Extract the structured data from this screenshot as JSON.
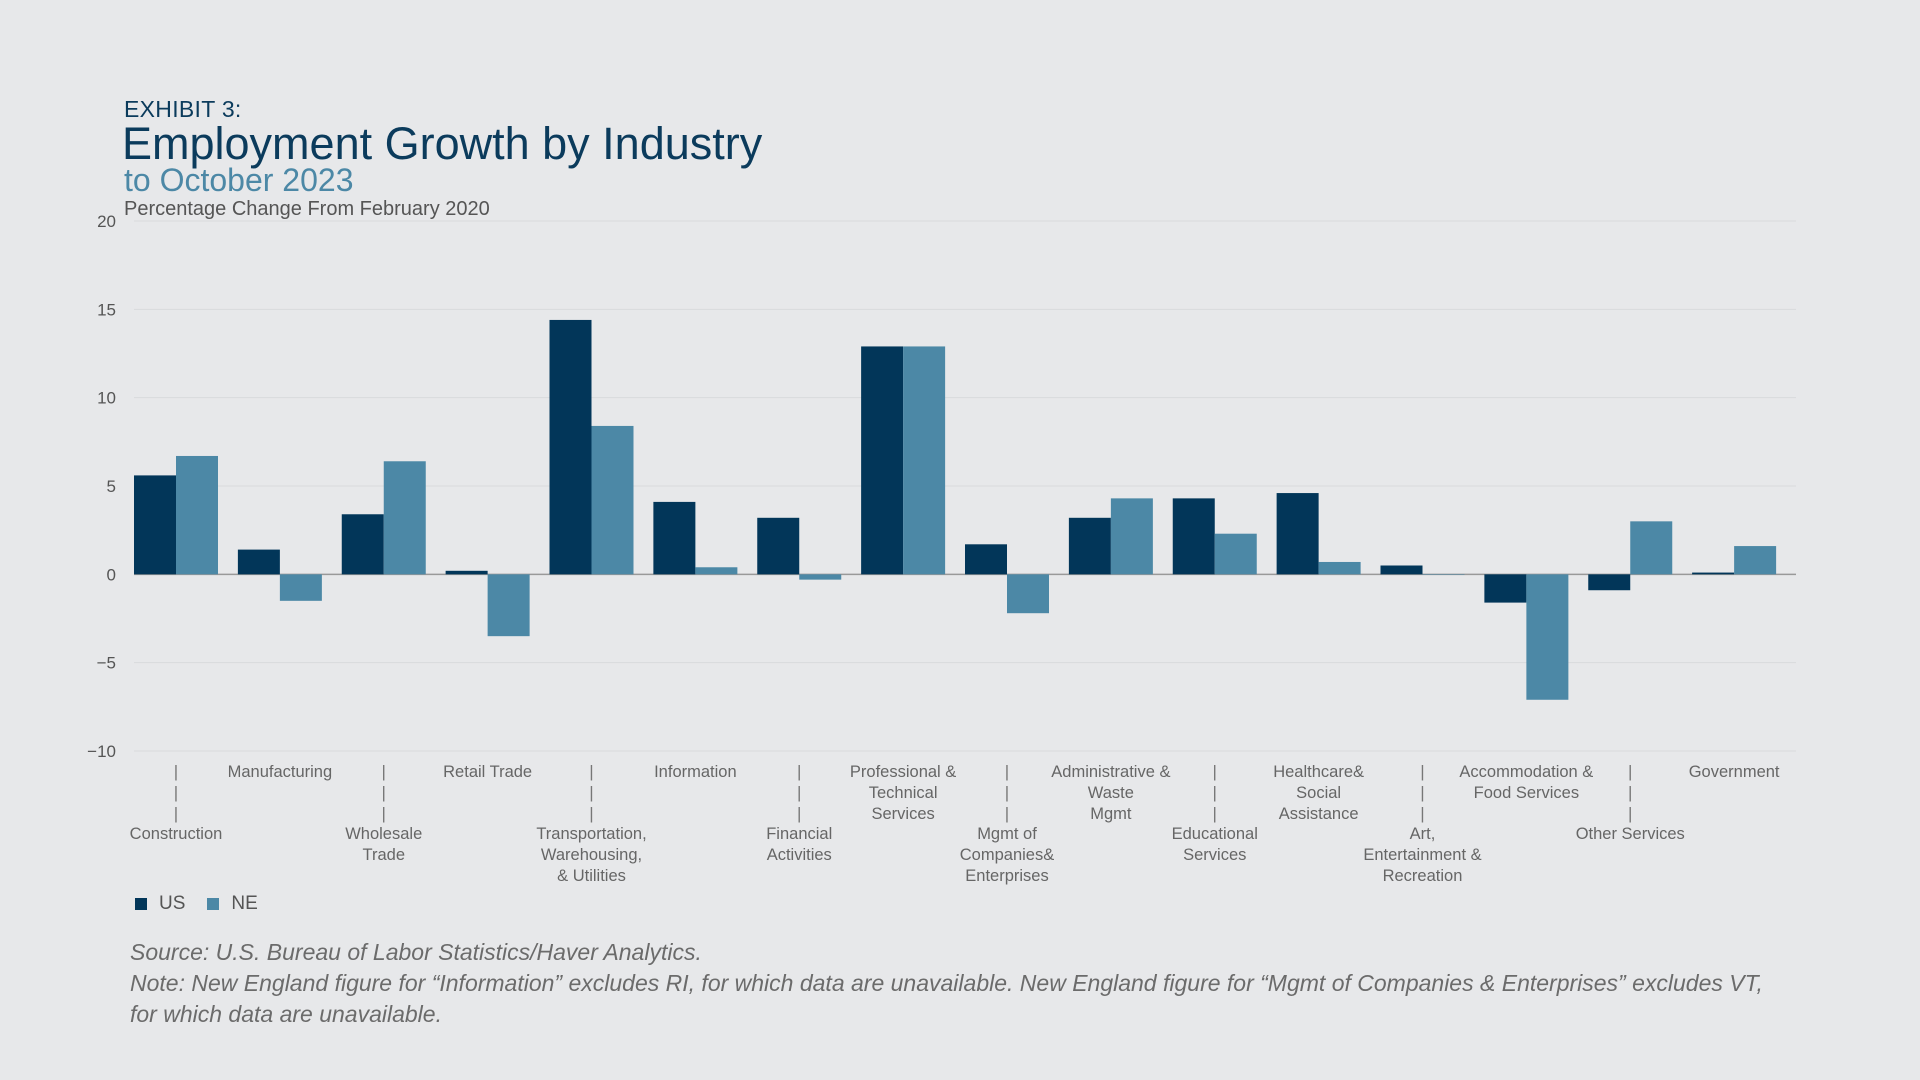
{
  "header": {
    "exhibit": "EXHIBIT 3:",
    "title": "Employment Growth by Industry",
    "subtitle": "to October 2023",
    "unit": "Percentage Change From February 2020"
  },
  "legend": [
    {
      "name": "US",
      "color": "#023659"
    },
    {
      "name": "NE",
      "color": "#4c88a6"
    }
  ],
  "footer": {
    "source": "Source: U.S. Bureau of Labor Statistics/Haver Analytics.",
    "note_line1": "Note: New England figure for “Information” excludes RI, for which data are unavailable. New England figure for “Mgmt of Companies & Enterprises” excludes VT,",
    "note_line2": "for which data are unavailable."
  },
  "chart_data": {
    "type": "bar",
    "categories": [
      "Construction",
      "Manufacturing",
      "Wholesale Trade",
      "Retail Trade",
      "Transportation, Warehousing, & Utilities",
      "Information",
      "Financial Activities",
      "Professional & Technical Services",
      "Mgmt of Companies& Enterprises",
      "Administrative & Waste Mgmt",
      "Educational Services",
      "Healthcare& Social Assistance",
      "Art, Entertainment & Recreation",
      "Accommodation & Food Services",
      "Other Services",
      "Government"
    ],
    "category_label_lines": [
      [
        "Construction"
      ],
      [
        "Manufacturing"
      ],
      [
        "Wholesale",
        "Trade"
      ],
      [
        "Retail Trade"
      ],
      [
        "Transportation,",
        "Warehousing,",
        "& Utilities"
      ],
      [
        "Information"
      ],
      [
        "Financial",
        "Activities"
      ],
      [
        "Professional &",
        "Technical",
        "Services"
      ],
      [
        "Mgmt of",
        "Companies&",
        "Enterprises"
      ],
      [
        "Administrative &",
        "Waste",
        "Mgmt"
      ],
      [
        "Educational",
        "Services"
      ],
      [
        "Healthcare&",
        "Social",
        "Assistance"
      ],
      [
        "Art,",
        "Entertainment &",
        "Recreation"
      ],
      [
        "Accommodation &",
        "Food Services"
      ],
      [
        "Other Services"
      ],
      [
        "Government"
      ]
    ],
    "series": [
      {
        "name": "US",
        "values": [
          5.6,
          1.4,
          3.4,
          0.2,
          14.4,
          4.1,
          3.2,
          12.9,
          1.7,
          3.2,
          4.3,
          4.6,
          0.5,
          -1.6,
          -0.9,
          0.1
        ]
      },
      {
        "name": "NE",
        "values": [
          6.7,
          -1.5,
          6.4,
          -3.5,
          8.4,
          0.4,
          -0.3,
          12.9,
          -2.2,
          4.3,
          2.3,
          0.7,
          0.0,
          -7.1,
          3.0,
          1.6
        ]
      }
    ],
    "yticks": [
      20,
      15,
      10,
      5,
      0,
      -5,
      -10
    ],
    "ytick_labels": [
      "20",
      "15",
      "10",
      "5",
      "0",
      "−5",
      "−10"
    ],
    "ylim": [
      -10,
      20
    ],
    "grid": true,
    "legend_position": "bottom-left"
  }
}
